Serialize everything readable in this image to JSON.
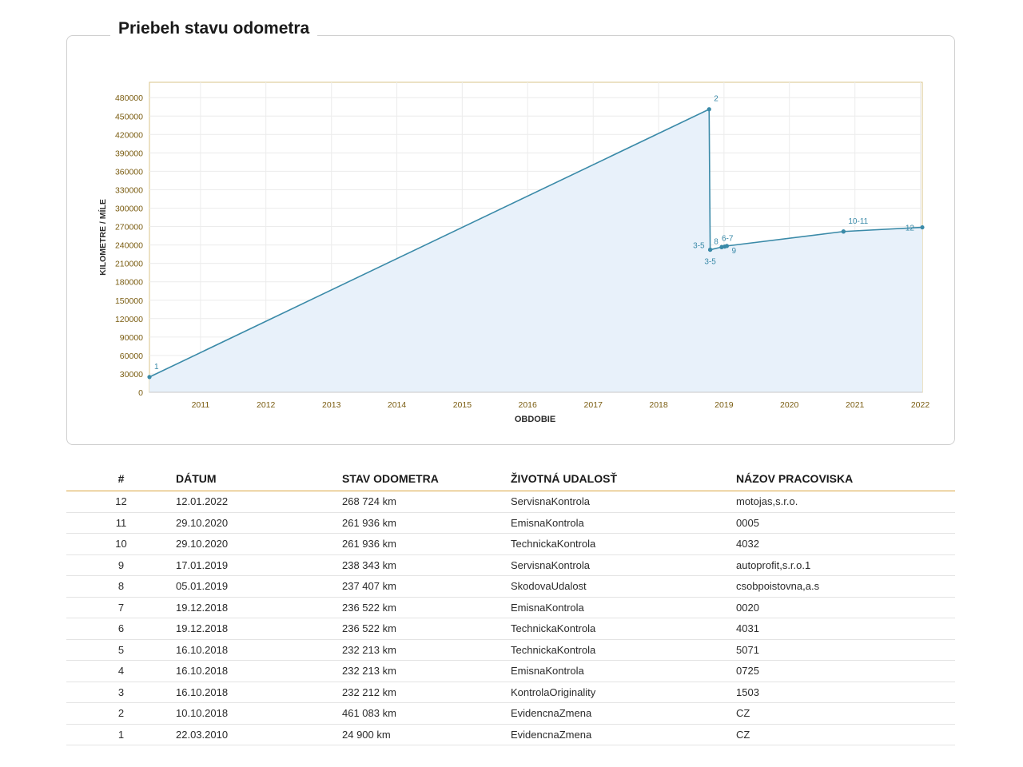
{
  "panel": {
    "title": "Priebeh stavu odometra"
  },
  "colors": {
    "line": "#3a8aa8",
    "fill": "#e8f1fa",
    "axis_text": "#7a5c10",
    "plot_border": "#d8c48a",
    "grid": "#ececec",
    "table_header_rule": "#d9a640"
  },
  "chart_data": {
    "type": "area",
    "xlabel": "OBDOBIE",
    "ylabel": "KILOMETRE / MÍLE",
    "ylim": [
      0,
      505000
    ],
    "xlim": [
      "2010-03-22",
      "2022-01-12"
    ],
    "y_ticks": [
      0,
      30000,
      60000,
      90000,
      120000,
      150000,
      180000,
      210000,
      240000,
      270000,
      300000,
      330000,
      360000,
      390000,
      420000,
      450000,
      480000
    ],
    "x_ticks": [
      "2011",
      "2012",
      "2013",
      "2014",
      "2015",
      "2016",
      "2017",
      "2018",
      "2019",
      "2020",
      "2021",
      "2022"
    ],
    "grid": true,
    "points": [
      {
        "date": "2010-03-22",
        "km": 24900
      },
      {
        "date": "2018-10-10",
        "km": 461083
      },
      {
        "date": "2018-10-16",
        "km": 232212
      },
      {
        "date": "2018-10-16",
        "km": 232213
      },
      {
        "date": "2018-10-16",
        "km": 232213
      },
      {
        "date": "2018-12-19",
        "km": 236522
      },
      {
        "date": "2018-12-19",
        "km": 236522
      },
      {
        "date": "2019-01-05",
        "km": 237407
      },
      {
        "date": "2019-01-17",
        "km": 238343
      },
      {
        "date": "2020-10-29",
        "km": 261936
      },
      {
        "date": "2020-10-29",
        "km": 261936
      },
      {
        "date": "2022-01-12",
        "km": 268724
      }
    ],
    "annotations": [
      {
        "label": "1",
        "date": "2010-03-22",
        "km": 24900
      },
      {
        "label": "2",
        "date": "2018-10-10",
        "km": 461083
      },
      {
        "label": "3-5",
        "date": "2018-10-16",
        "km": 232212
      },
      {
        "label": "3-5",
        "date": "2018-10-16",
        "km": 232213
      },
      {
        "label": "6-7",
        "date": "2018-12-19",
        "km": 236522
      },
      {
        "label": "8",
        "date": "2019-01-05",
        "km": 237407
      },
      {
        "label": "9",
        "date": "2019-01-17",
        "km": 238343
      },
      {
        "label": "10-11",
        "date": "2020-10-29",
        "km": 261936
      },
      {
        "label": "12",
        "date": "2022-01-12",
        "km": 268724
      }
    ]
  },
  "table": {
    "headers": {
      "num": "#",
      "date": "DÁTUM",
      "km": "STAV ODOMETRA",
      "event": "ŽIVOTNÁ UDALOSŤ",
      "shop": "NÁZOV PRACOVISKA"
    },
    "rows": [
      {
        "num": "12",
        "date": "12.01.2022",
        "km": "268 724 km",
        "event": "ServisnaKontrola",
        "shop": "motojas,s.r.o."
      },
      {
        "num": "11",
        "date": "29.10.2020",
        "km": "261 936 km",
        "event": "EmisnaKontrola",
        "shop": "0005"
      },
      {
        "num": "10",
        "date": "29.10.2020",
        "km": "261 936 km",
        "event": "TechnickaKontrola",
        "shop": "4032"
      },
      {
        "num": "9",
        "date": "17.01.2019",
        "km": "238 343 km",
        "event": "ServisnaKontrola",
        "shop": "autoprofit,s.r.o.1"
      },
      {
        "num": "8",
        "date": "05.01.2019",
        "km": "237 407 km",
        "event": "SkodovaUdalost",
        "shop": "csobpoistovna,a.s"
      },
      {
        "num": "7",
        "date": "19.12.2018",
        "km": "236 522 km",
        "event": "EmisnaKontrola",
        "shop": "0020"
      },
      {
        "num": "6",
        "date": "19.12.2018",
        "km": "236 522 km",
        "event": "TechnickaKontrola",
        "shop": "4031"
      },
      {
        "num": "5",
        "date": "16.10.2018",
        "km": "232 213 km",
        "event": "TechnickaKontrola",
        "shop": "5071"
      },
      {
        "num": "4",
        "date": "16.10.2018",
        "km": "232 213 km",
        "event": "EmisnaKontrola",
        "shop": "0725"
      },
      {
        "num": "3",
        "date": "16.10.2018",
        "km": "232 212 km",
        "event": "KontrolaOriginality",
        "shop": "1503"
      },
      {
        "num": "2",
        "date": "10.10.2018",
        "km": "461 083 km",
        "event": "EvidencnaZmena",
        "shop": "CZ"
      },
      {
        "num": "1",
        "date": "22.03.2010",
        "km": "24 900 km",
        "event": "EvidencnaZmena",
        "shop": "CZ"
      }
    ]
  }
}
